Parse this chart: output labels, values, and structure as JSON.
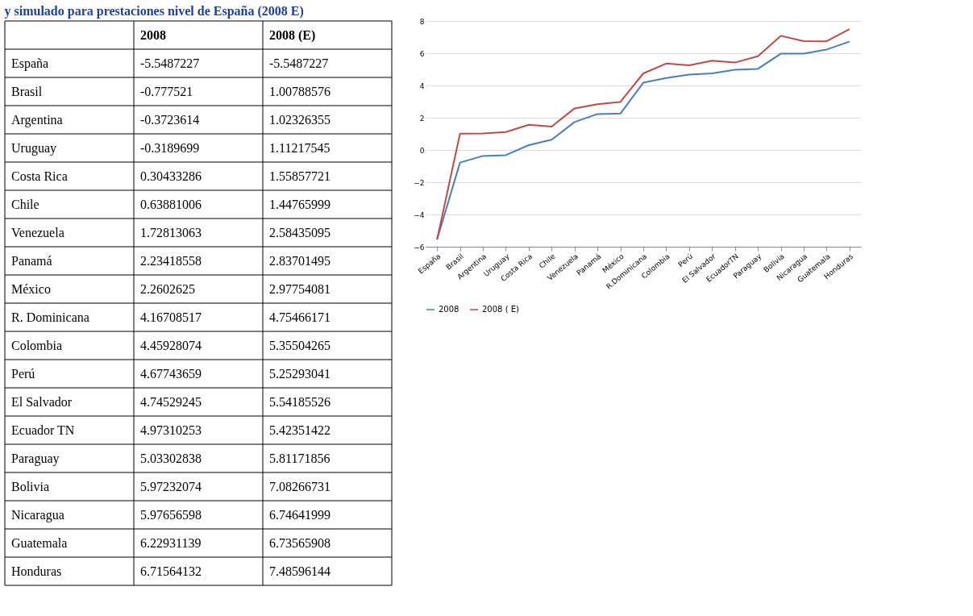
{
  "chart_data": [
    {
      "type": "other",
      "title": "y simulado para prestaciones nivel de España (2008 E)",
      "categories": [
        "España",
        "Brasil",
        "Argentina",
        "Uruguay",
        "Costa Rica",
        "Chile",
        "Venezuela",
        "Panamá",
        "México",
        "R. Dominicana",
        "Colombia",
        "Perú",
        "El Salvador",
        "Ecuador TN",
        "Paraguay",
        "Bolivia",
        "Nicaragua",
        "Guatemala",
        "Honduras"
      ],
      "series": [
        {
          "name": "2008",
          "values": [
            -5.5487227,
            -0.777521,
            -0.3723614,
            -0.3189699,
            0.30433286,
            0.63881006,
            1.72813063,
            2.23418558,
            2.2602625,
            4.16708517,
            4.45928074,
            4.67743659,
            4.74529245,
            4.97310253,
            5.03302838,
            5.97232074,
            5.97656598,
            6.22931139,
            6.71564132
          ]
        },
        {
          "name": "2008 (E)",
          "values": [
            -5.5487227,
            1.00788576,
            1.02326355,
            1.11217545,
            1.55857721,
            1.44765999,
            2.58435095,
            2.83701495,
            2.97754081,
            4.75466171,
            5.35504265,
            5.25293041,
            5.54185526,
            5.42351422,
            5.81171856,
            7.08266731,
            6.74641999,
            6.73565908,
            7.48596144
          ]
        }
      ],
      "data_labels": true
    },
    {
      "type": "line",
      "categories": [
        "España",
        "Brasil",
        "Argentina",
        "Uruguay",
        "Costa Rica",
        "Chile",
        "Venezuela",
        "Panamá",
        "México",
        "R.Dominicana",
        "Colombia",
        "Perú",
        "El Salvador",
        "EcuadorTN",
        "Paraguay",
        "Bolivia",
        "Nicaragua",
        "Guatemala",
        "Honduras"
      ],
      "series": [
        {
          "name": "2008",
          "color": "#4a7ebb",
          "values": [
            -5.55,
            -0.78,
            -0.37,
            -0.32,
            0.3,
            0.64,
            1.73,
            2.23,
            2.26,
            4.17,
            4.46,
            4.68,
            4.75,
            4.97,
            5.03,
            5.97,
            5.98,
            6.23,
            6.72
          ]
        },
        {
          "name": "2008 ( E)",
          "color": "#be4b48",
          "values": [
            -5.55,
            1.01,
            1.02,
            1.11,
            1.56,
            1.45,
            2.58,
            2.84,
            2.98,
            4.75,
            5.36,
            5.25,
            5.54,
            5.42,
            5.81,
            7.08,
            6.75,
            6.74,
            7.49
          ]
        }
      ],
      "ylim": [
        -6,
        8
      ],
      "yticks": [
        -6,
        -4,
        -2,
        0,
        2,
        4,
        6,
        8
      ],
      "grid": "y",
      "legend": "bottom"
    }
  ]
}
